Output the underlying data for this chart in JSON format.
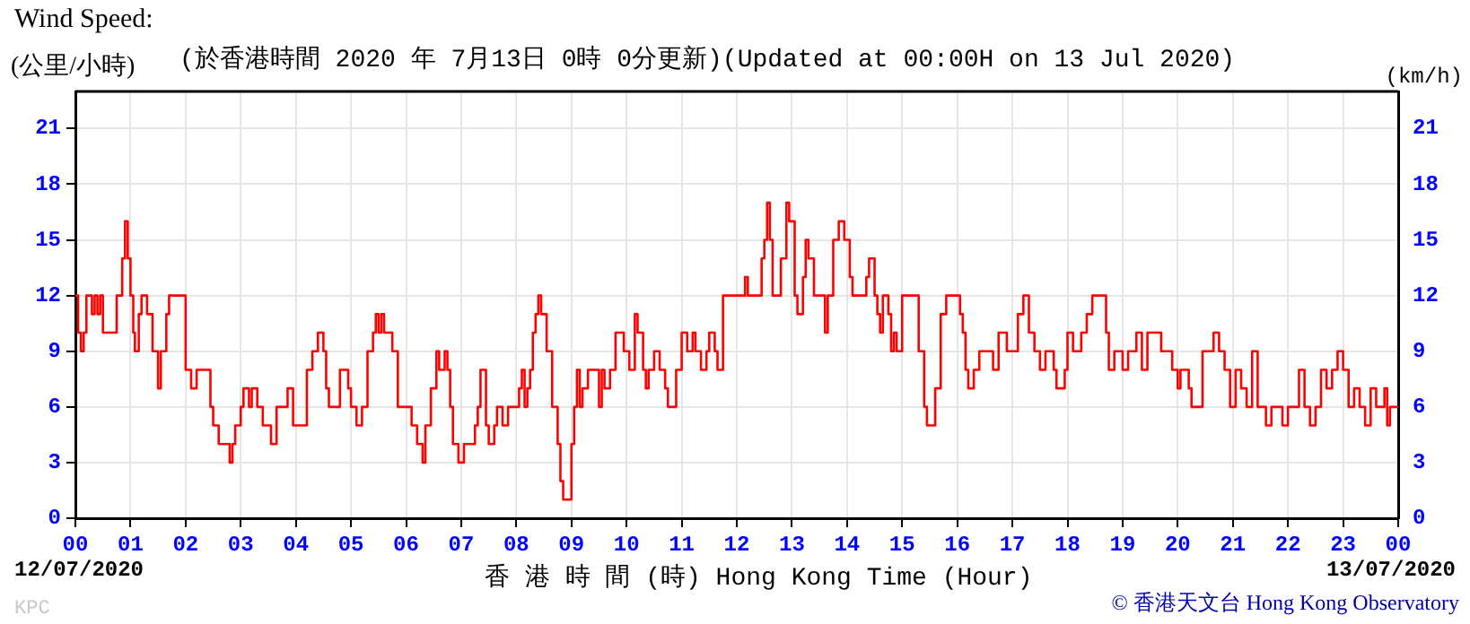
{
  "chart_data": {
    "type": "step",
    "title": "Wind Speed:",
    "subtitle": "(於香港時間 2020 年 7月13日 0時 0分更新)(Updated at 00:00H on 13 Jul 2020)",
    "ylabel": "(公里/小時)",
    "y2label": "(km/h)",
    "xlabel": "香 港 時 間 (時) Hong Kong Time (Hour)",
    "annotations": [
      "12/07/2020",
      "13/07/2020",
      "KPC",
      "© 香港天文台 Hong Kong Observatory"
    ],
    "x": [
      0,
      0.05,
      0.1,
      0.15,
      0.2,
      0.3,
      0.35,
      0.4,
      0.45,
      0.5,
      0.75,
      0.85,
      0.9,
      0.95,
      1.0,
      1.05,
      1.08,
      1.15,
      1.2,
      1.3,
      1.4,
      1.5,
      1.55,
      1.65,
      1.7,
      2.0,
      2.1,
      2.2,
      2.45,
      2.5,
      2.6,
      2.8,
      2.85,
      2.9,
      3.0,
      3.05,
      3.15,
      3.2,
      3.3,
      3.4,
      3.55,
      3.65,
      3.85,
      3.95,
      4.2,
      4.3,
      4.4,
      4.5,
      4.55,
      4.6,
      4.8,
      4.95,
      5.0,
      5.1,
      5.2,
      5.3,
      5.4,
      5.45,
      5.5,
      5.55,
      5.6,
      5.75,
      5.85,
      6.1,
      6.2,
      6.3,
      6.35,
      6.45,
      6.55,
      6.6,
      6.7,
      6.75,
      6.8,
      6.85,
      6.95,
      7.05,
      7.25,
      7.3,
      7.35,
      7.45,
      7.5,
      7.6,
      7.65,
      7.75,
      7.85,
      8.0,
      8.05,
      8.1,
      8.15,
      8.2,
      8.25,
      8.3,
      8.35,
      8.4,
      8.45,
      8.55,
      8.65,
      8.75,
      8.8,
      8.85,
      9.0,
      9.05,
      9.1,
      9.15,
      9.2,
      9.3,
      9.5,
      9.55,
      9.6,
      9.7,
      9.8,
      9.95,
      10.05,
      10.15,
      10.2,
      10.3,
      10.35,
      10.4,
      10.5,
      10.6,
      10.7,
      10.75,
      10.9,
      11.0,
      11.1,
      11.2,
      11.25,
      11.35,
      11.45,
      11.5,
      11.6,
      11.65,
      11.75,
      12.15,
      12.2,
      12.45,
      12.5,
      12.55,
      12.6,
      12.65,
      12.8,
      12.9,
      12.95,
      13.05,
      13.1,
      13.2,
      13.25,
      13.3,
      13.4,
      13.6,
      13.65,
      13.75,
      13.85,
      13.95,
      14.05,
      14.1,
      14.35,
      14.4,
      14.5,
      14.55,
      14.6,
      14.65,
      14.75,
      14.8,
      14.85,
      14.9,
      15.0,
      15.3,
      15.4,
      15.45,
      15.6,
      15.7,
      15.8,
      16.05,
      16.1,
      16.15,
      16.2,
      16.3,
      16.4,
      16.65,
      16.75,
      16.9,
      17.1,
      17.2,
      17.3,
      17.4,
      17.5,
      17.6,
      17.75,
      17.8,
      17.95,
      18.0,
      18.1,
      18.25,
      18.35,
      18.45,
      18.7,
      18.75,
      18.85,
      19.0,
      19.1,
      19.25,
      19.35,
      19.45,
      19.7,
      19.9,
      20.0,
      20.05,
      20.2,
      20.25,
      20.45,
      20.65,
      20.75,
      20.85,
      20.95,
      21.05,
      21.15,
      21.25,
      21.35,
      21.45,
      21.6,
      21.7,
      21.9,
      22.0,
      22.2,
      22.3,
      22.4,
      22.5,
      22.6,
      22.7,
      22.8,
      22.9,
      23.0,
      23.1,
      23.2,
      23.3,
      23.4,
      23.5,
      23.6,
      23.75,
      23.8,
      23.85,
      24.0
    ],
    "values": [
      12,
      10,
      9,
      10,
      12,
      11,
      12,
      11,
      12,
      10,
      12,
      14,
      16,
      14,
      12,
      10,
      9,
      11,
      12,
      11,
      9,
      7,
      9,
      11,
      12,
      8,
      7,
      8,
      6,
      5,
      4,
      3,
      4,
      5,
      6,
      7,
      6,
      7,
      6,
      5,
      4,
      6,
      7,
      5,
      8,
      9,
      10,
      9,
      7,
      6,
      8,
      7,
      6,
      5,
      6,
      9,
      10,
      11,
      10,
      11,
      10,
      9,
      6,
      5,
      4,
      3,
      5,
      7,
      9,
      8,
      9,
      8,
      6,
      4,
      3,
      4,
      5,
      6,
      8,
      5,
      4,
      5,
      6,
      5,
      6,
      6,
      7,
      8,
      6,
      7,
      8,
      10,
      11,
      12,
      11,
      9,
      6,
      4,
      2,
      1,
      4,
      6,
      8,
      6,
      7,
      8,
      6,
      8,
      7,
      8,
      10,
      9,
      8,
      11,
      10,
      8,
      7,
      8,
      9,
      8,
      7,
      6,
      8,
      10,
      9,
      10,
      9,
      8,
      9,
      10,
      9,
      8,
      12,
      13,
      12,
      14,
      15,
      17,
      15,
      12,
      14,
      17,
      16,
      12,
      11,
      13,
      15,
      14,
      12,
      10,
      12,
      15,
      16,
      15,
      13,
      12,
      13,
      14,
      12,
      11,
      10,
      12,
      11,
      9,
      10,
      9,
      12,
      9,
      6,
      5,
      7,
      11,
      12,
      11,
      10,
      8,
      7,
      8,
      9,
      8,
      10,
      9,
      11,
      12,
      10,
      9,
      8,
      9,
      8,
      7,
      8,
      10,
      9,
      10,
      11,
      12,
      10,
      8,
      9,
      8,
      9,
      10,
      8,
      10,
      9,
      8,
      7,
      8,
      7,
      6,
      9,
      10,
      9,
      8,
      6,
      8,
      7,
      6,
      9,
      6,
      5,
      6,
      5,
      6,
      8,
      6,
      5,
      6,
      8,
      7,
      8,
      9,
      8,
      6,
      7,
      6,
      5,
      7,
      6,
      7,
      5,
      6,
      6
    ],
    "color": "#ff0000",
    "xlim": [
      0,
      24
    ],
    "xticks": [
      {
        "value": 0,
        "label": "00"
      },
      {
        "value": 1,
        "label": "01"
      },
      {
        "value": 2,
        "label": "02"
      },
      {
        "value": 3,
        "label": "03"
      },
      {
        "value": 4,
        "label": "04"
      },
      {
        "value": 5,
        "label": "05"
      },
      {
        "value": 6,
        "label": "06"
      },
      {
        "value": 7,
        "label": "07"
      },
      {
        "value": 8,
        "label": "08"
      },
      {
        "value": 9,
        "label": "09"
      },
      {
        "value": 10,
        "label": "10"
      },
      {
        "value": 11,
        "label": "11"
      },
      {
        "value": 12,
        "label": "12"
      },
      {
        "value": 13,
        "label": "13"
      },
      {
        "value": 14,
        "label": "14"
      },
      {
        "value": 15,
        "label": "15"
      },
      {
        "value": 16,
        "label": "16"
      },
      {
        "value": 17,
        "label": "17"
      },
      {
        "value": 18,
        "label": "18"
      },
      {
        "value": 19,
        "label": "19"
      },
      {
        "value": 20,
        "label": "20"
      },
      {
        "value": 21,
        "label": "21"
      },
      {
        "value": 22,
        "label": "22"
      },
      {
        "value": 23,
        "label": "23"
      },
      {
        "value": 24,
        "label": "00"
      }
    ],
    "ylim": [
      0,
      23
    ],
    "yticks": [
      0,
      3,
      6,
      9,
      12,
      15,
      18,
      21
    ],
    "y2lim": [
      0,
      23
    ],
    "y2ticks": [
      0,
      3,
      6,
      9,
      12,
      15,
      18,
      21
    ],
    "grid": true,
    "legend": false,
    "marker": "none",
    "line_style": "solid"
  }
}
